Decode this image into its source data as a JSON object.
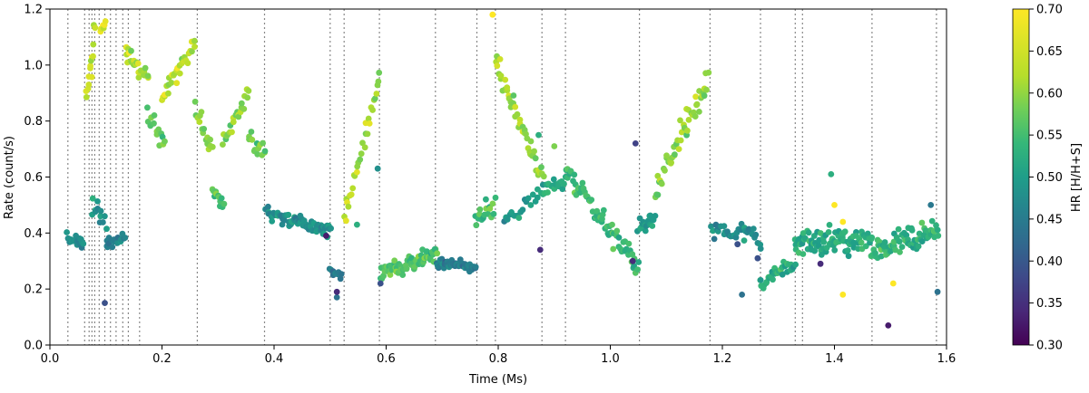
{
  "chart_data": {
    "type": "scatter",
    "xlabel": "Time (Ms)",
    "ylabel": "Rate (count/s)",
    "xlim": [
      0.0,
      1.6
    ],
    "ylim": [
      0.0,
      1.2
    ],
    "x_ticks": [
      0.0,
      0.2,
      0.4,
      0.6,
      0.8,
      1.0,
      1.2,
      1.4,
      1.6
    ],
    "x_tick_labels": [
      "0.0",
      "0.2",
      "0.4",
      "0.6",
      "0.8",
      "1.0",
      "1.2",
      "1.4",
      "1.6"
    ],
    "y_ticks": [
      0.0,
      0.2,
      0.4,
      0.6,
      0.8,
      1.0,
      1.2
    ],
    "y_tick_labels": [
      "0.0",
      "0.2",
      "0.4",
      "0.6",
      "0.8",
      "1.0",
      "1.2"
    ],
    "colorbar": {
      "label": "HR [H/H+S]",
      "min": 0.3,
      "max": 0.7,
      "ticks": [
        0.3,
        0.35,
        0.4,
        0.45,
        0.5,
        0.55,
        0.6,
        0.65,
        0.7
      ],
      "tick_labels": [
        "0.30",
        "0.35",
        "0.40",
        "0.45",
        "0.50",
        "0.55",
        "0.60",
        "0.65",
        "0.70"
      ],
      "colormap": "viridis"
    },
    "vlines": [
      0.032,
      0.062,
      0.07,
      0.075,
      0.08,
      0.088,
      0.098,
      0.108,
      0.118,
      0.13,
      0.14,
      0.16,
      0.263,
      0.383,
      0.5,
      0.525,
      0.588,
      0.688,
      0.762,
      0.795,
      0.878,
      0.92,
      1.052,
      1.178,
      1.268,
      1.33,
      1.343,
      1.467,
      1.582
    ],
    "segments": [
      {
        "x0": 0.03,
        "x1": 0.06,
        "y0": 0.38,
        "y1": 0.36,
        "hr": 0.5,
        "n": 20,
        "spread": 0.04
      },
      {
        "x0": 0.065,
        "x1": 0.08,
        "y0": 0.9,
        "y1": 1.1,
        "hr": 0.66,
        "n": 14,
        "spread": 0.08
      },
      {
        "x0": 0.075,
        "x1": 0.1,
        "y0": 0.5,
        "y1": 0.44,
        "hr": 0.52,
        "n": 12,
        "spread": 0.05
      },
      {
        "x0": 0.09,
        "x1": 0.1,
        "y0": 1.12,
        "y1": 1.16,
        "hr": 0.67,
        "n": 6,
        "spread": 0.03
      },
      {
        "x0": 0.1,
        "x1": 0.135,
        "y0": 0.36,
        "y1": 0.38,
        "hr": 0.48,
        "n": 20,
        "spread": 0.03
      },
      {
        "x0": 0.135,
        "x1": 0.175,
        "y0": 1.05,
        "y1": 0.95,
        "hr": 0.65,
        "n": 24,
        "spread": 0.04
      },
      {
        "x0": 0.175,
        "x1": 0.205,
        "y0": 0.82,
        "y1": 0.72,
        "hr": 0.6,
        "n": 14,
        "spread": 0.05
      },
      {
        "x0": 0.2,
        "x1": 0.26,
        "y0": 0.88,
        "y1": 1.08,
        "hr": 0.66,
        "n": 30,
        "spread": 0.05
      },
      {
        "x0": 0.26,
        "x1": 0.29,
        "y0": 0.85,
        "y1": 0.68,
        "hr": 0.62,
        "n": 16,
        "spread": 0.05
      },
      {
        "x0": 0.29,
        "x1": 0.31,
        "y0": 0.56,
        "y1": 0.5,
        "hr": 0.58,
        "n": 12,
        "spread": 0.03
      },
      {
        "x0": 0.31,
        "x1": 0.355,
        "y0": 0.72,
        "y1": 0.9,
        "hr": 0.63,
        "n": 22,
        "spread": 0.05
      },
      {
        "x0": 0.355,
        "x1": 0.385,
        "y0": 0.75,
        "y1": 0.68,
        "hr": 0.6,
        "n": 14,
        "spread": 0.05
      },
      {
        "x0": 0.385,
        "x1": 0.5,
        "y0": 0.47,
        "y1": 0.4,
        "hr": 0.5,
        "n": 70,
        "spread": 0.035
      },
      {
        "x0": 0.5,
        "x1": 0.52,
        "y0": 0.27,
        "y1": 0.24,
        "hr": 0.47,
        "n": 10,
        "spread": 0.025
      },
      {
        "x0": 0.525,
        "x1": 0.588,
        "y0": 0.45,
        "y1": 0.95,
        "hr": 0.64,
        "n": 30,
        "spread": 0.05
      },
      {
        "x0": 0.59,
        "x1": 0.69,
        "y0": 0.26,
        "y1": 0.32,
        "hr": 0.59,
        "n": 65,
        "spread": 0.05
      },
      {
        "x0": 0.69,
        "x1": 0.76,
        "y0": 0.29,
        "y1": 0.28,
        "hr": 0.47,
        "n": 45,
        "spread": 0.025
      },
      {
        "x0": 0.76,
        "x1": 0.795,
        "y0": 0.45,
        "y1": 0.5,
        "hr": 0.58,
        "n": 16,
        "spread": 0.04
      },
      {
        "x0": 0.795,
        "x1": 0.88,
        "y0": 1.02,
        "y1": 0.6,
        "hr": 0.64,
        "n": 45,
        "spread": 0.06
      },
      {
        "x0": 0.81,
        "x1": 0.88,
        "y0": 0.45,
        "y1": 0.55,
        "hr": 0.52,
        "n": 20,
        "spread": 0.05
      },
      {
        "x0": 0.88,
        "x1": 0.92,
        "y0": 0.55,
        "y1": 0.58,
        "hr": 0.55,
        "n": 18,
        "spread": 0.05
      },
      {
        "x0": 0.92,
        "x1": 1.05,
        "y0": 0.62,
        "y1": 0.28,
        "hr": 0.57,
        "n": 70,
        "spread": 0.06
      },
      {
        "x0": 1.05,
        "x1": 1.08,
        "y0": 0.42,
        "y1": 0.46,
        "hr": 0.52,
        "n": 18,
        "spread": 0.04
      },
      {
        "x0": 1.08,
        "x1": 1.175,
        "y0": 0.55,
        "y1": 0.95,
        "hr": 0.63,
        "n": 50,
        "spread": 0.07
      },
      {
        "x0": 1.18,
        "x1": 1.268,
        "y0": 0.42,
        "y1": 0.38,
        "hr": 0.5,
        "n": 35,
        "spread": 0.05
      },
      {
        "x0": 1.268,
        "x1": 1.33,
        "y0": 0.22,
        "y1": 0.3,
        "hr": 0.55,
        "n": 35,
        "spread": 0.04
      },
      {
        "x0": 1.33,
        "x1": 1.467,
        "y0": 0.37,
        "y1": 0.37,
        "hr": 0.55,
        "n": 90,
        "spread": 0.07
      },
      {
        "x0": 1.467,
        "x1": 1.585,
        "y0": 0.33,
        "y1": 0.4,
        "hr": 0.56,
        "n": 75,
        "spread": 0.065
      }
    ],
    "outliers": [
      {
        "x": 0.098,
        "y": 0.15,
        "hr": 0.4
      },
      {
        "x": 0.512,
        "y": 0.17,
        "hr": 0.45
      },
      {
        "x": 0.512,
        "y": 0.19,
        "hr": 0.35
      },
      {
        "x": 0.493,
        "y": 0.39,
        "hr": 0.33
      },
      {
        "x": 0.548,
        "y": 0.43,
        "hr": 0.55
      },
      {
        "x": 0.585,
        "y": 0.63,
        "hr": 0.5
      },
      {
        "x": 0.59,
        "y": 0.22,
        "hr": 0.4
      },
      {
        "x": 0.778,
        "y": 0.52,
        "hr": 0.55
      },
      {
        "x": 0.79,
        "y": 1.18,
        "hr": 0.7
      },
      {
        "x": 0.875,
        "y": 0.34,
        "hr": 0.35
      },
      {
        "x": 0.872,
        "y": 0.75,
        "hr": 0.55
      },
      {
        "x": 0.9,
        "y": 0.71,
        "hr": 0.62
      },
      {
        "x": 1.04,
        "y": 0.3,
        "hr": 0.35
      },
      {
        "x": 1.045,
        "y": 0.72,
        "hr": 0.38
      },
      {
        "x": 1.227,
        "y": 0.36,
        "hr": 0.4
      },
      {
        "x": 1.235,
        "y": 0.18,
        "hr": 0.45
      },
      {
        "x": 1.263,
        "y": 0.31,
        "hr": 0.4
      },
      {
        "x": 1.375,
        "y": 0.29,
        "hr": 0.35
      },
      {
        "x": 1.394,
        "y": 0.61,
        "hr": 0.55
      },
      {
        "x": 1.4,
        "y": 0.5,
        "hr": 0.7
      },
      {
        "x": 1.496,
        "y": 0.07,
        "hr": 0.33
      },
      {
        "x": 1.505,
        "y": 0.22,
        "hr": 0.7
      },
      {
        "x": 1.584,
        "y": 0.19,
        "hr": 0.45
      },
      {
        "x": 1.572,
        "y": 0.5,
        "hr": 0.46
      },
      {
        "x": 1.415,
        "y": 0.44,
        "hr": 0.7
      },
      {
        "x": 1.415,
        "y": 0.18,
        "hr": 0.7
      }
    ]
  }
}
